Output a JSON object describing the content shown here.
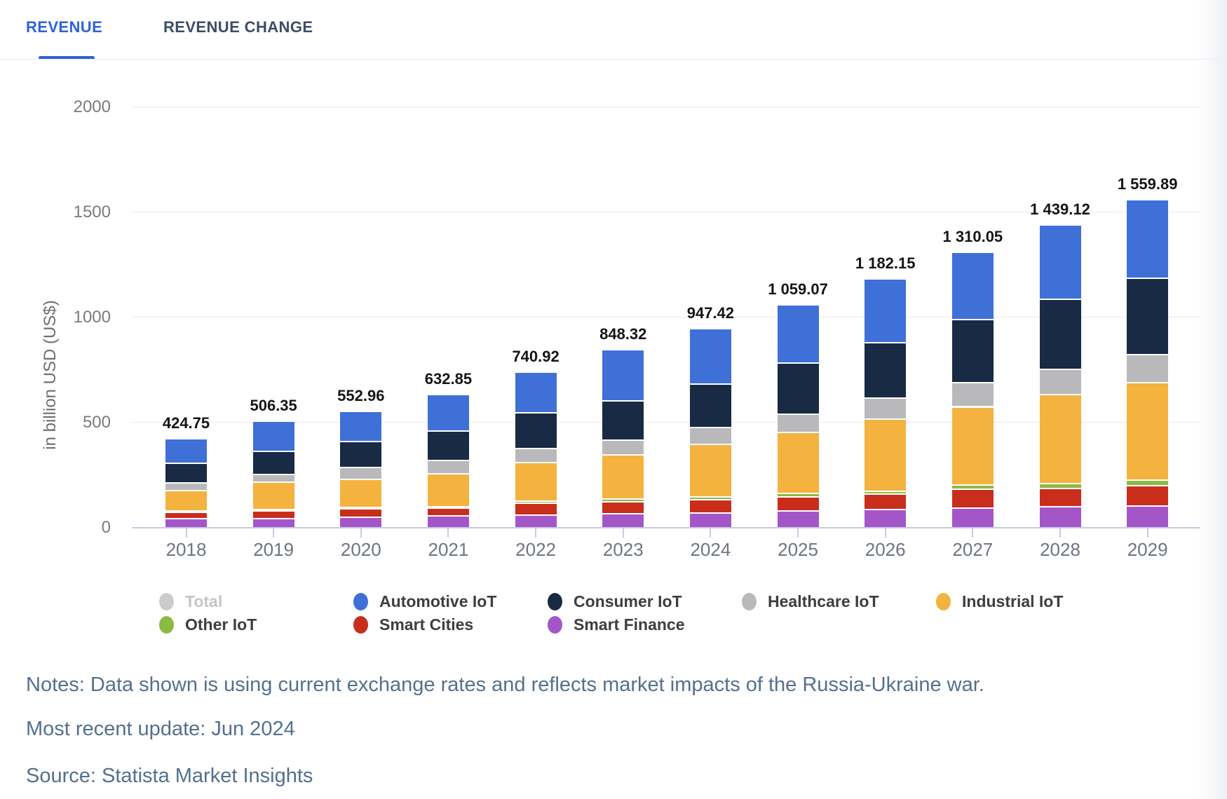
{
  "tabs": {
    "revenue_label": "REVENUE",
    "revenue_change_label": "REVENUE CHANGE",
    "active_tab": "REVENUE"
  },
  "chart_data": {
    "type": "bar",
    "stacked": true,
    "title": "",
    "xlabel": "",
    "ylabel": "in billion USD (US$)",
    "unit": "billion USD",
    "ylim": [
      0,
      2000
    ],
    "yticks": [
      0,
      500,
      1000,
      1500,
      2000
    ],
    "grid": "horizontal",
    "legend_position": "bottom",
    "categories": [
      "2018",
      "2019",
      "2020",
      "2021",
      "2022",
      "2023",
      "2024",
      "2025",
      "2026",
      "2027",
      "2028",
      "2029"
    ],
    "totals": [
      424.75,
      506.35,
      552.96,
      632.85,
      740.92,
      848.32,
      947.42,
      1059.07,
      1182.15,
      1310.05,
      1439.12,
      1559.89
    ],
    "total_labels": [
      "424.75",
      "506.35",
      "552.96",
      "632.85",
      "740.92",
      "848.32",
      "947.42",
      "1 059.07",
      "1 182.15",
      "1 310.05",
      "1 439.12",
      "1 559.89"
    ],
    "series": [
      {
        "name": "Smart Finance",
        "color": "#A456C8",
        "values": [
          42.75,
          43.6,
          50.8,
          57.6,
          60.0,
          65.0,
          70.7,
          81.3,
          87.9,
          94.7,
          98.6,
          104.9
        ]
      },
      {
        "name": "Smart Cities",
        "color": "#C92D1C",
        "values": [
          31.6,
          36.5,
          37.6,
          36.4,
          56.0,
          59.0,
          62.6,
          66.0,
          70.7,
          89.6,
          89.6,
          96.7
        ]
      },
      {
        "name": "Other IoT",
        "color": "#8CBA45",
        "values": [
          6.1,
          7.1,
          8.1,
          7.1,
          10.2,
          12.2,
          14.1,
          16.3,
          16.2,
          19.1,
          22.1,
          26.5
        ]
      },
      {
        "name": "Industrial IoT",
        "color": "#F4B23F",
        "values": [
          97.8,
          129.9,
          132.1,
          156.7,
          183.0,
          210.3,
          249.5,
          290.6,
          341.5,
          371.6,
          421.7,
          460.7
        ]
      },
      {
        "name": "Healthcare IoT",
        "color": "#B9B9BB",
        "values": [
          36.7,
          37.5,
          59.0,
          60.7,
          68.3,
          70.1,
          78.8,
          86.4,
          99.0,
          113.8,
          122.8,
          133.0
        ]
      },
      {
        "name": "Consumer IoT",
        "color": "#182A44",
        "values": [
          92.7,
          109.6,
          121.0,
          140.5,
          170.2,
          188.0,
          208.1,
          243.9,
          263.7,
          302.1,
          332.1,
          365.5
        ]
      },
      {
        "name": "Automotive IoT",
        "color": "#3E70D8",
        "values": [
          117.1,
          142.15,
          144.36,
          173.85,
          193.22,
          243.72,
          263.62,
          274.57,
          303.15,
          319.15,
          352.22,
          372.59
        ]
      }
    ],
    "legend": [
      {
        "label": "Total",
        "color": "#CBCBCB",
        "disabled": true
      },
      {
        "label": "Automotive IoT",
        "color": "#3E70D8",
        "disabled": false
      },
      {
        "label": "Consumer IoT",
        "color": "#182A44",
        "disabled": false
      },
      {
        "label": "Healthcare IoT",
        "color": "#B9B9BB",
        "disabled": false
      },
      {
        "label": "Industrial IoT",
        "color": "#F4B23F",
        "disabled": false
      },
      {
        "label": "Other IoT",
        "color": "#8CBA45",
        "disabled": false
      },
      {
        "label": "Smart Cities",
        "color": "#C92D1C",
        "disabled": false
      },
      {
        "label": "Smart Finance",
        "color": "#A456C8",
        "disabled": false
      }
    ]
  },
  "notes": {
    "notes_line": "Notes: Data shown is using current exchange rates and reflects market impacts of the Russia-Ukraine war.",
    "update_line": "Most recent update: Jun 2024",
    "source_line": "Source: Statista Market Insights"
  }
}
